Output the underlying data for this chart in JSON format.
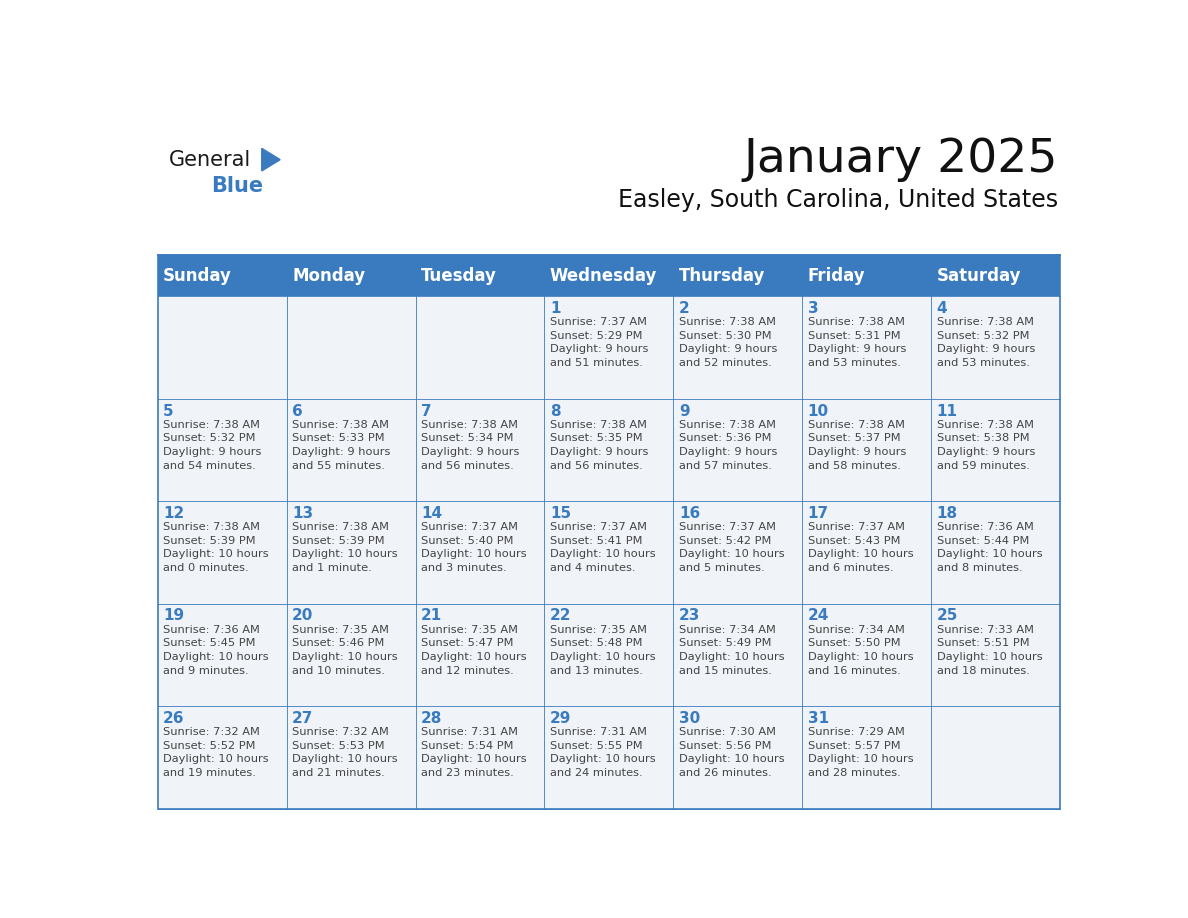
{
  "title": "January 2025",
  "subtitle": "Easley, South Carolina, United States",
  "days_of_week": [
    "Sunday",
    "Monday",
    "Tuesday",
    "Wednesday",
    "Thursday",
    "Friday",
    "Saturday"
  ],
  "header_bg": "#3a7bbf",
  "header_text_color": "#ffffff",
  "cell_bg_light": "#f0f4f8",
  "cell_bg_white": "#ffffff",
  "border_color": "#3a7bbf",
  "day_number_color": "#3a7bbf",
  "cell_text_color": "#444444",
  "calendar_data": [
    [
      {
        "day": null,
        "info": ""
      },
      {
        "day": null,
        "info": ""
      },
      {
        "day": null,
        "info": ""
      },
      {
        "day": 1,
        "info": "Sunrise: 7:37 AM\nSunset: 5:29 PM\nDaylight: 9 hours\nand 51 minutes."
      },
      {
        "day": 2,
        "info": "Sunrise: 7:38 AM\nSunset: 5:30 PM\nDaylight: 9 hours\nand 52 minutes."
      },
      {
        "day": 3,
        "info": "Sunrise: 7:38 AM\nSunset: 5:31 PM\nDaylight: 9 hours\nand 53 minutes."
      },
      {
        "day": 4,
        "info": "Sunrise: 7:38 AM\nSunset: 5:32 PM\nDaylight: 9 hours\nand 53 minutes."
      }
    ],
    [
      {
        "day": 5,
        "info": "Sunrise: 7:38 AM\nSunset: 5:32 PM\nDaylight: 9 hours\nand 54 minutes."
      },
      {
        "day": 6,
        "info": "Sunrise: 7:38 AM\nSunset: 5:33 PM\nDaylight: 9 hours\nand 55 minutes."
      },
      {
        "day": 7,
        "info": "Sunrise: 7:38 AM\nSunset: 5:34 PM\nDaylight: 9 hours\nand 56 minutes."
      },
      {
        "day": 8,
        "info": "Sunrise: 7:38 AM\nSunset: 5:35 PM\nDaylight: 9 hours\nand 56 minutes."
      },
      {
        "day": 9,
        "info": "Sunrise: 7:38 AM\nSunset: 5:36 PM\nDaylight: 9 hours\nand 57 minutes."
      },
      {
        "day": 10,
        "info": "Sunrise: 7:38 AM\nSunset: 5:37 PM\nDaylight: 9 hours\nand 58 minutes."
      },
      {
        "day": 11,
        "info": "Sunrise: 7:38 AM\nSunset: 5:38 PM\nDaylight: 9 hours\nand 59 minutes."
      }
    ],
    [
      {
        "day": 12,
        "info": "Sunrise: 7:38 AM\nSunset: 5:39 PM\nDaylight: 10 hours\nand 0 minutes."
      },
      {
        "day": 13,
        "info": "Sunrise: 7:38 AM\nSunset: 5:39 PM\nDaylight: 10 hours\nand 1 minute."
      },
      {
        "day": 14,
        "info": "Sunrise: 7:37 AM\nSunset: 5:40 PM\nDaylight: 10 hours\nand 3 minutes."
      },
      {
        "day": 15,
        "info": "Sunrise: 7:37 AM\nSunset: 5:41 PM\nDaylight: 10 hours\nand 4 minutes."
      },
      {
        "day": 16,
        "info": "Sunrise: 7:37 AM\nSunset: 5:42 PM\nDaylight: 10 hours\nand 5 minutes."
      },
      {
        "day": 17,
        "info": "Sunrise: 7:37 AM\nSunset: 5:43 PM\nDaylight: 10 hours\nand 6 minutes."
      },
      {
        "day": 18,
        "info": "Sunrise: 7:36 AM\nSunset: 5:44 PM\nDaylight: 10 hours\nand 8 minutes."
      }
    ],
    [
      {
        "day": 19,
        "info": "Sunrise: 7:36 AM\nSunset: 5:45 PM\nDaylight: 10 hours\nand 9 minutes."
      },
      {
        "day": 20,
        "info": "Sunrise: 7:35 AM\nSunset: 5:46 PM\nDaylight: 10 hours\nand 10 minutes."
      },
      {
        "day": 21,
        "info": "Sunrise: 7:35 AM\nSunset: 5:47 PM\nDaylight: 10 hours\nand 12 minutes."
      },
      {
        "day": 22,
        "info": "Sunrise: 7:35 AM\nSunset: 5:48 PM\nDaylight: 10 hours\nand 13 minutes."
      },
      {
        "day": 23,
        "info": "Sunrise: 7:34 AM\nSunset: 5:49 PM\nDaylight: 10 hours\nand 15 minutes."
      },
      {
        "day": 24,
        "info": "Sunrise: 7:34 AM\nSunset: 5:50 PM\nDaylight: 10 hours\nand 16 minutes."
      },
      {
        "day": 25,
        "info": "Sunrise: 7:33 AM\nSunset: 5:51 PM\nDaylight: 10 hours\nand 18 minutes."
      }
    ],
    [
      {
        "day": 26,
        "info": "Sunrise: 7:32 AM\nSunset: 5:52 PM\nDaylight: 10 hours\nand 19 minutes."
      },
      {
        "day": 27,
        "info": "Sunrise: 7:32 AM\nSunset: 5:53 PM\nDaylight: 10 hours\nand 21 minutes."
      },
      {
        "day": 28,
        "info": "Sunrise: 7:31 AM\nSunset: 5:54 PM\nDaylight: 10 hours\nand 23 minutes."
      },
      {
        "day": 29,
        "info": "Sunrise: 7:31 AM\nSunset: 5:55 PM\nDaylight: 10 hours\nand 24 minutes."
      },
      {
        "day": 30,
        "info": "Sunrise: 7:30 AM\nSunset: 5:56 PM\nDaylight: 10 hours\nand 26 minutes."
      },
      {
        "day": 31,
        "info": "Sunrise: 7:29 AM\nSunset: 5:57 PM\nDaylight: 10 hours\nand 28 minutes."
      },
      {
        "day": null,
        "info": ""
      }
    ]
  ],
  "logo_text_general": "General",
  "logo_text_blue": "Blue",
  "logo_triangle_color": "#3a7bbf"
}
